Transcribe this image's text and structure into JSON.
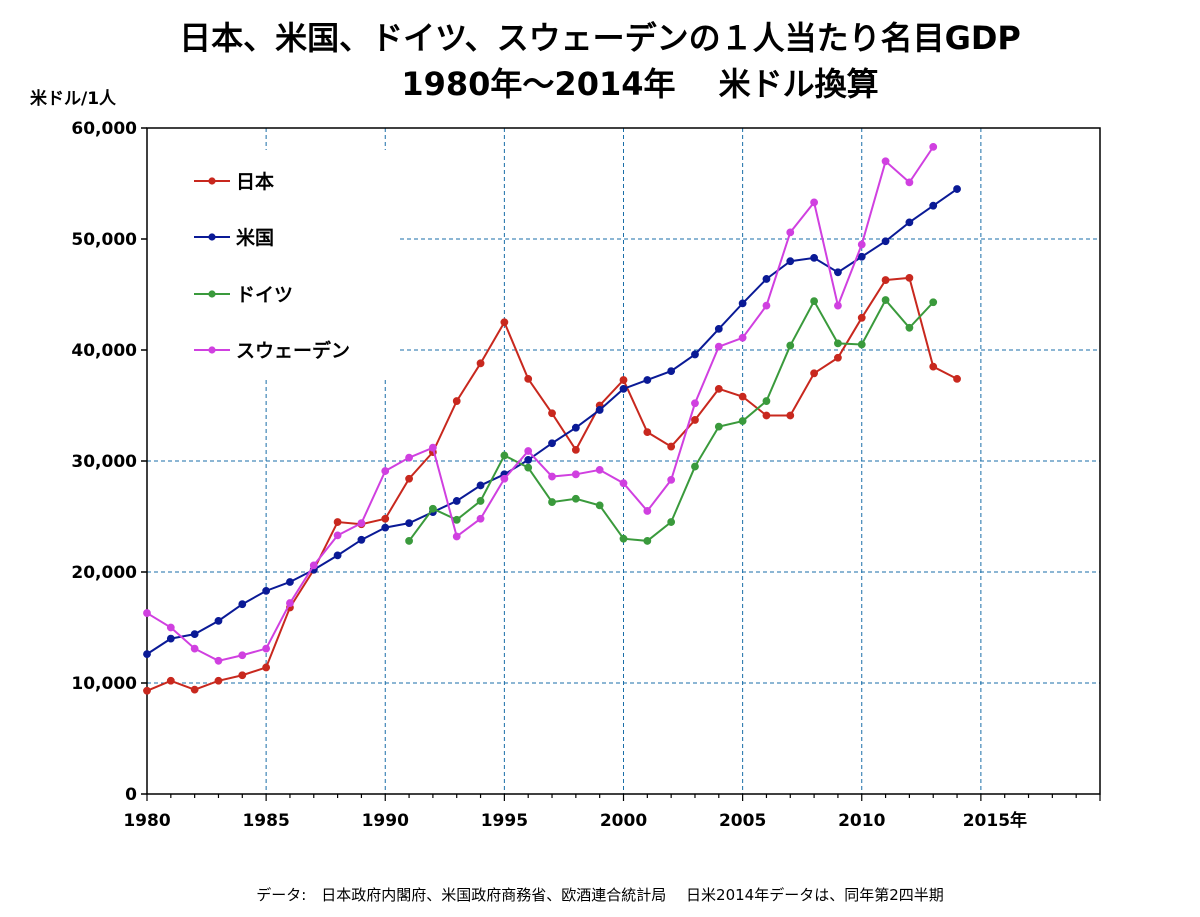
{
  "chart_data": {
    "type": "line",
    "title": "日本、米国、ドイツ、スウェーデンの１人当たり名目GDP",
    "subtitle": "1980年～2014年　 米ドル換算",
    "ylabel": "米ドル/1人",
    "xlabel": "",
    "xlim": [
      1980,
      2020
    ],
    "ylim": [
      0,
      60000
    ],
    "x_ticks": [
      {
        "value": 1980,
        "label": "1980"
      },
      {
        "value": 1985,
        "label": "1985"
      },
      {
        "value": 1990,
        "label": "1990"
      },
      {
        "value": 1995,
        "label": "1995"
      },
      {
        "value": 2000,
        "label": "2000"
      },
      {
        "value": 2005,
        "label": "2005"
      },
      {
        "value": 2010,
        "label": "2010"
      },
      {
        "value": 2015,
        "label": "2015年"
      }
    ],
    "y_ticks": [
      {
        "value": 0,
        "label": "0"
      },
      {
        "value": 10000,
        "label": "10,000"
      },
      {
        "value": 20000,
        "label": "20,000"
      },
      {
        "value": 30000,
        "label": "30,000"
      },
      {
        "value": 40000,
        "label": "40,000"
      },
      {
        "value": 50000,
        "label": "50,000"
      },
      {
        "value": 60000,
        "label": "60,000"
      }
    ],
    "grid": true,
    "legend_position": "top-left",
    "series": [
      {
        "name": "日本",
        "color": "#c8281e",
        "x": [
          1980,
          1981,
          1982,
          1983,
          1984,
          1985,
          1986,
          1987,
          1988,
          1989,
          1990,
          1991,
          1992,
          1993,
          1994,
          1995,
          1996,
          1997,
          1998,
          1999,
          2000,
          2001,
          2002,
          2003,
          2004,
          2005,
          2006,
          2007,
          2008,
          2009,
          2010,
          2011,
          2012,
          2013,
          2014
        ],
        "y": [
          9300,
          10200,
          9400,
          10200,
          10700,
          11400,
          16800,
          20200,
          24500,
          24300,
          24800,
          28400,
          30800,
          35400,
          38800,
          42500,
          37400,
          34300,
          31000,
          35000,
          37300,
          32600,
          31300,
          33700,
          36500,
          35800,
          34100,
          34100,
          37900,
          39300,
          42900,
          46300,
          46500,
          38500,
          37400
        ]
      },
      {
        "name": "米国",
        "color": "#0a1a96",
        "x": [
          1980,
          1981,
          1982,
          1983,
          1984,
          1985,
          1986,
          1987,
          1988,
          1989,
          1990,
          1991,
          1992,
          1993,
          1994,
          1995,
          1996,
          1997,
          1998,
          1999,
          2000,
          2001,
          2002,
          2003,
          2004,
          2005,
          2006,
          2007,
          2008,
          2009,
          2010,
          2011,
          2012,
          2013,
          2014
        ],
        "y": [
          12600,
          14000,
          14400,
          15600,
          17100,
          18300,
          19100,
          20200,
          21500,
          22900,
          24000,
          24400,
          25400,
          26400,
          27800,
          28800,
          30100,
          31600,
          33000,
          34600,
          36500,
          37300,
          38100,
          39600,
          41900,
          44200,
          46400,
          48000,
          48300,
          47000,
          48400,
          49800,
          51500,
          53000,
          54500
        ]
      },
      {
        "name": "ドイツ",
        "color": "#3a9a3c",
        "x": [
          1991,
          1992,
          1993,
          1994,
          1995,
          1996,
          1997,
          1998,
          1999,
          2000,
          2001,
          2002,
          2003,
          2004,
          2005,
          2006,
          2007,
          2008,
          2009,
          2010,
          2011,
          2012,
          2013
        ],
        "y": [
          22800,
          25700,
          24700,
          26400,
          30500,
          29400,
          26300,
          26600,
          26000,
          23000,
          22800,
          24500,
          29500,
          33100,
          33600,
          35400,
          40400,
          44400,
          40600,
          40500,
          44500,
          42000,
          44300
        ]
      },
      {
        "name": "スウェーデン",
        "color": "#d040e0",
        "x": [
          1980,
          1981,
          1982,
          1983,
          1984,
          1985,
          1986,
          1987,
          1988,
          1989,
          1990,
          1991,
          1992,
          1993,
          1994,
          1995,
          1996,
          1997,
          1998,
          1999,
          2000,
          2001,
          2002,
          2003,
          2004,
          2005,
          2006,
          2007,
          2008,
          2009,
          2010,
          2011,
          2012,
          2013
        ],
        "y": [
          16300,
          15000,
          13100,
          12000,
          12500,
          13100,
          17200,
          20600,
          23300,
          24400,
          29100,
          30300,
          31200,
          23200,
          24800,
          28400,
          30900,
          28600,
          28800,
          29200,
          28000,
          25500,
          28300,
          35200,
          40300,
          41100,
          44000,
          50600,
          53300,
          44000,
          49500,
          57000,
          55100,
          58300
        ]
      }
    ],
    "source_note": "データ:　日本政府内閣府、米国政府商務省、欧酒連合統計局　 日米2014年データは、同年第2四半期"
  }
}
